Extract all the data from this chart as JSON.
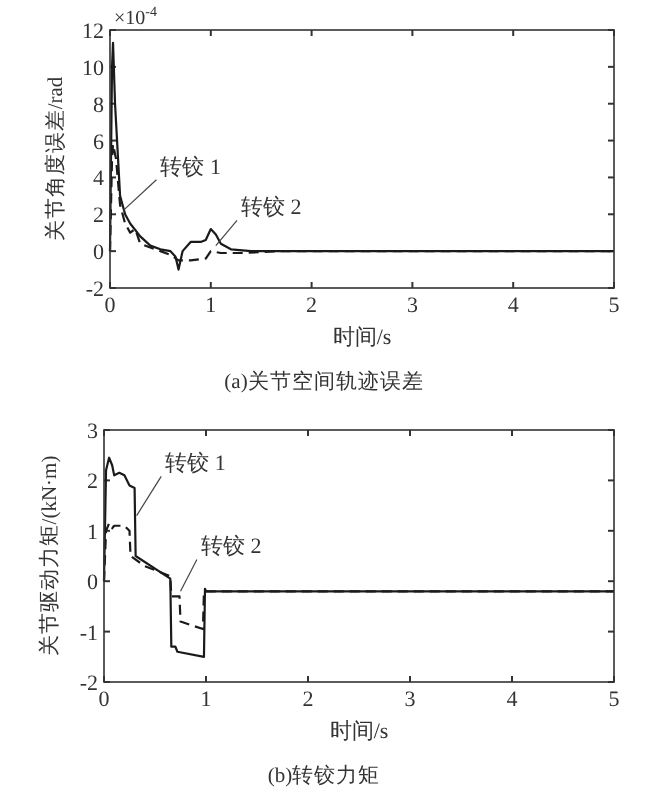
{
  "chart_data": [
    {
      "type": "line",
      "title": "(a)关节空间轨迹误差",
      "xlabel": "时间/s",
      "ylabel": "关节角度误差/rad",
      "annotations": [
        "×10$^{-4}$"
      ],
      "xlim": [
        0,
        5
      ],
      "xticks": [
        0,
        1,
        2,
        3,
        4,
        5
      ],
      "ylim": [
        -2,
        12
      ],
      "yticks": [
        -2,
        0,
        2,
        4,
        6,
        8,
        10,
        12
      ],
      "grid": false,
      "series": [
        {
          "name": "转铰 1",
          "color": "#1a1a1a",
          "line_style": "solid",
          "x": [
            0,
            0.02,
            0.03,
            0.05,
            0.1,
            0.15,
            0.2,
            0.3,
            0.4,
            0.5,
            0.6,
            0.65,
            0.68,
            0.72,
            0.8,
            0.9,
            0.95,
            1.0,
            1.05,
            1.1,
            1.2,
            1.4,
            5
          ],
          "values": [
            0,
            10,
            11.3,
            8,
            3,
            2,
            1.5,
            0.8,
            0.3,
            0.1,
            0,
            -0.3,
            -1,
            0,
            0.5,
            0.5,
            0.6,
            1.2,
            0.9,
            0.4,
            0.1,
            0,
            0
          ]
        },
        {
          "name": "转铰 2",
          "color": "#1a1a1a",
          "line_style": "dashed",
          "x": [
            0,
            0.02,
            0.03,
            0.06,
            0.1,
            0.15,
            0.2,
            0.25,
            0.3,
            0.4,
            0.5,
            0.6,
            0.68,
            0.8,
            0.95,
            1.0,
            1.1,
            1.3,
            1.7,
            5
          ],
          "values": [
            0,
            5,
            5.8,
            5,
            2.5,
            1.5,
            1,
            1.2,
            0.4,
            0.2,
            0,
            -0.2,
            -0.5,
            -0.5,
            -0.4,
            0,
            -0.1,
            -0.1,
            0,
            0
          ]
        }
      ]
    },
    {
      "type": "line",
      "title": "(b)转铰力矩",
      "xlabel": "时间/s",
      "ylabel": "关节驱动力矩/(kN·m)",
      "xlim": [
        0,
        5
      ],
      "xticks": [
        0,
        1,
        2,
        3,
        4,
        5
      ],
      "ylim": [
        -2,
        3
      ],
      "yticks": [
        -2,
        -1,
        0,
        1,
        2,
        3
      ],
      "grid": false,
      "series": [
        {
          "name": "转铰 1",
          "color": "#1a1a1a",
          "line_style": "solid",
          "x": [
            0,
            0.02,
            0.05,
            0.08,
            0.1,
            0.15,
            0.2,
            0.25,
            0.3,
            0.31,
            0.65,
            0.66,
            0.7,
            0.72,
            0.98,
            0.99,
            1.0,
            5
          ],
          "values": [
            0,
            2.2,
            2.45,
            2.3,
            2.1,
            2.15,
            2.1,
            1.9,
            1.85,
            0.5,
            0.05,
            -1.3,
            -1.3,
            -1.4,
            -1.5,
            -0.15,
            -0.2,
            -0.2
          ]
        },
        {
          "name": "转铰 2",
          "color": "#1a1a1a",
          "line_style": "dashed",
          "x": [
            0,
            0.02,
            0.05,
            0.08,
            0.1,
            0.2,
            0.25,
            0.26,
            0.4,
            0.65,
            0.66,
            0.74,
            0.75,
            0.97,
            0.98,
            5
          ],
          "values": [
            0,
            1,
            1.15,
            1.05,
            1.1,
            1.1,
            1,
            0.5,
            0.3,
            0.1,
            -0.3,
            -0.3,
            -0.8,
            -0.95,
            -0.2,
            -0.2
          ]
        }
      ]
    }
  ]
}
